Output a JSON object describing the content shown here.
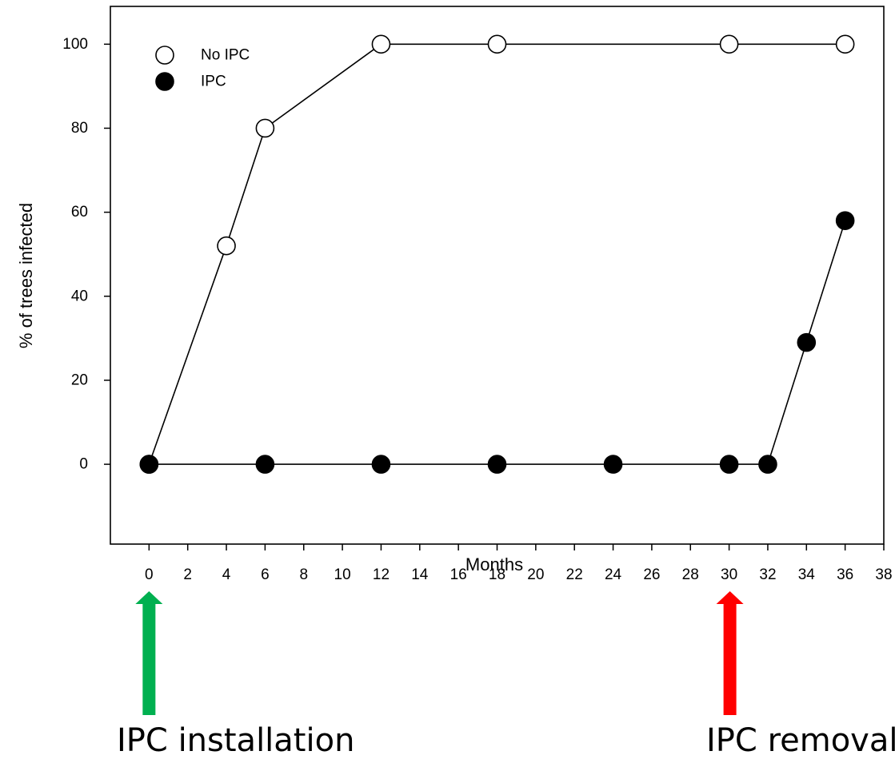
{
  "chart_data": {
    "type": "line",
    "xlabel": "Months",
    "ylabel": "% of trees infected",
    "xlim": [
      -2,
      38
    ],
    "ylim": [
      -19,
      109
    ],
    "x_ticks": [
      0,
      2,
      4,
      6,
      8,
      10,
      12,
      14,
      16,
      18,
      20,
      22,
      24,
      26,
      28,
      30,
      32,
      34,
      36,
      38
    ],
    "y_ticks": [
      0,
      20,
      40,
      60,
      80,
      100
    ],
    "grid": false,
    "legend_position": "top-left",
    "series": [
      {
        "name": "No IPC",
        "marker": "open-circle",
        "x": [
          0,
          4,
          6,
          12,
          18,
          30,
          36
        ],
        "y": [
          0,
          52,
          80,
          100,
          100,
          100,
          100
        ]
      },
      {
        "name": "IPC",
        "marker": "filled-circle",
        "x": [
          0,
          6,
          12,
          18,
          24,
          30,
          32,
          34,
          36
        ],
        "y": [
          0,
          0,
          0,
          0,
          0,
          0,
          0,
          29,
          58
        ]
      }
    ],
    "annotations": [
      {
        "text": "IPC installation",
        "x": 0,
        "arrow_color": "#00b050"
      },
      {
        "text": "IPC removal",
        "x": 30,
        "arrow_color": "#ff0000"
      }
    ]
  }
}
